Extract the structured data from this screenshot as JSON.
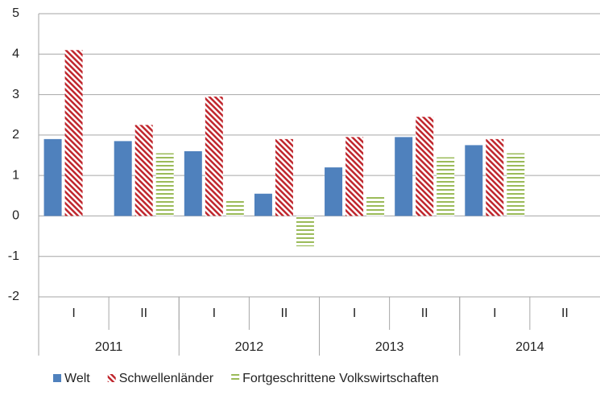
{
  "chart_data": {
    "type": "bar",
    "categories": [
      "I",
      "II",
      "I",
      "II",
      "I",
      "II",
      "I",
      "II"
    ],
    "groups": [
      "2011",
      "2012",
      "2013",
      "2014"
    ],
    "series": [
      {
        "name": "Welt",
        "color": "#4f81bd",
        "pattern": "solid",
        "values": [
          1.9,
          1.85,
          1.6,
          0.55,
          1.2,
          1.95,
          1.75,
          null
        ]
      },
      {
        "name": "Schwellenländer",
        "color": "#c0262d",
        "pattern": "diagonal",
        "values": [
          4.1,
          2.25,
          2.95,
          1.9,
          1.95,
          2.45,
          1.9,
          null
        ]
      },
      {
        "name": "Fortgeschrittene Volkswirtschaften",
        "color": "#9bbb59",
        "pattern": "horizontal",
        "values": [
          null,
          1.55,
          0.4,
          -0.75,
          0.5,
          1.45,
          1.55,
          null
        ]
      }
    ],
    "ylim": [
      -2,
      5
    ],
    "yticks": [
      -2,
      -1,
      0,
      1,
      2,
      3,
      4,
      5
    ],
    "grid": true
  }
}
